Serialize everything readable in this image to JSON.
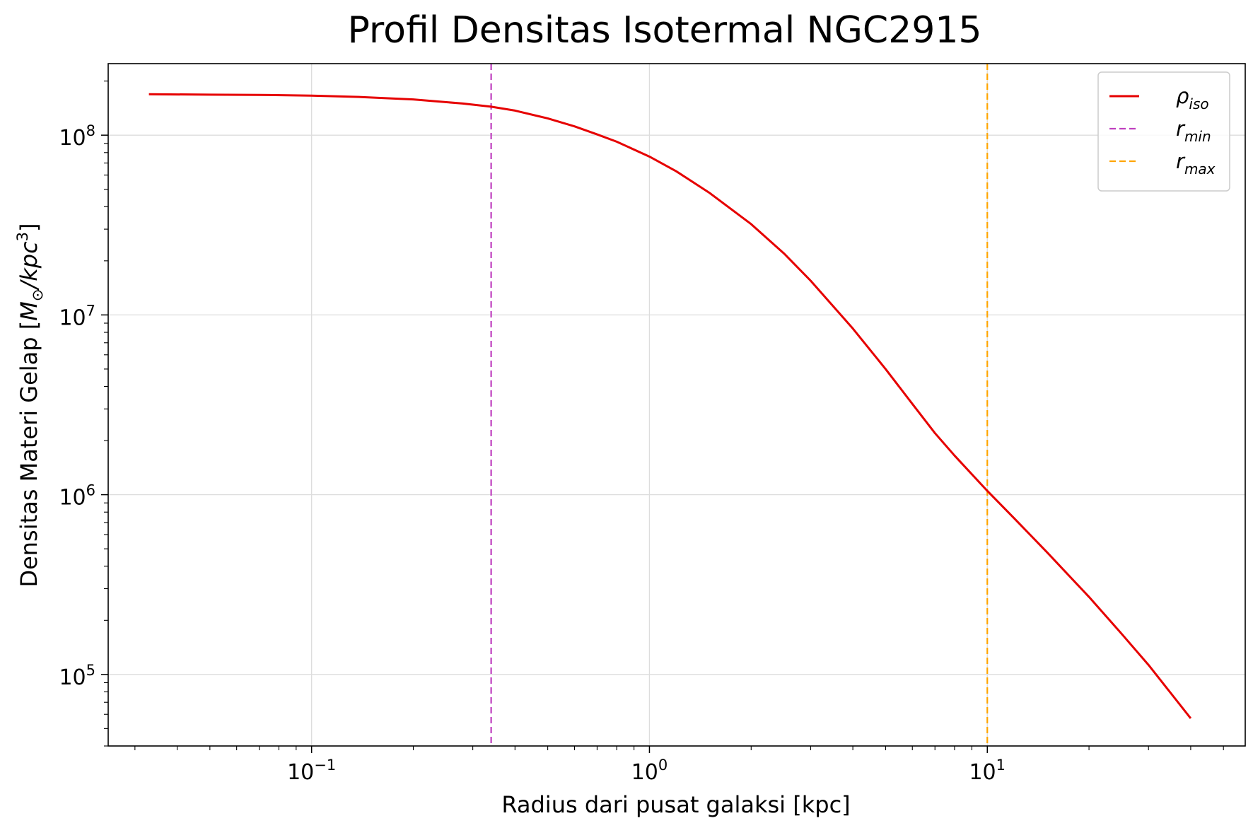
{
  "chart_data": {
    "type": "line",
    "title": "Profil Densitas Isotermal NGC2915",
    "xlabel": "Radius dari pusat galaksi [kpc]",
    "ylabel": {
      "main": "Densitas Materi Gelap [",
      "unit_M": "M",
      "unit_sub": "⊙",
      "unit_rest": "/kpc",
      "unit_exp": "3",
      "close": "]"
    },
    "xscale": "log",
    "yscale": "log",
    "xlim": [
      0.025,
      58
    ],
    "ylim": [
      40000,
      250000000
    ],
    "grid": true,
    "x_ticks": [
      {
        "value": 0.1,
        "base": "10",
        "exp": "−1"
      },
      {
        "value": 1,
        "base": "10",
        "exp": "0"
      },
      {
        "value": 10,
        "base": "10",
        "exp": "1"
      }
    ],
    "y_ticks": [
      {
        "value": 100000,
        "base": "10",
        "exp": "5"
      },
      {
        "value": 1000000,
        "base": "10",
        "exp": "6"
      },
      {
        "value": 10000000,
        "base": "10",
        "exp": "7"
      },
      {
        "value": 100000000,
        "base": "10",
        "exp": "8"
      }
    ],
    "series": [
      {
        "name": {
          "base": "ρ",
          "sub": "iso"
        },
        "color": "#e60000",
        "style": "solid",
        "x": [
          0.033,
          0.05,
          0.07,
          0.1,
          0.14,
          0.2,
          0.28,
          0.34,
          0.4,
          0.5,
          0.6,
          0.7,
          0.8,
          1.0,
          1.2,
          1.5,
          2.0,
          2.5,
          3.0,
          4.0,
          5.0,
          6.0,
          7.0,
          8.0,
          10.0,
          12.0,
          15.0,
          20.0,
          25.0,
          30.0,
          40.0
        ],
        "y": [
          169000000,
          168000000,
          167500000,
          166000000,
          163000000,
          158000000,
          150000000,
          144000000,
          137000000,
          124000000,
          112000000,
          101000000,
          92000000,
          76000000,
          63000000,
          48000000,
          32000000,
          22000000,
          15500000,
          8400000,
          5000000,
          3200000,
          2200000,
          1650000,
          1050000,
          740000,
          480000,
          270000,
          168000,
          113000,
          57000
        ]
      },
      {
        "name": {
          "base": "r",
          "sub": "min"
        },
        "color": "#bf40bf",
        "style": "dashed",
        "vline": 0.34
      },
      {
        "name": {
          "base": "r",
          "sub": "max"
        },
        "color": "#ffa500",
        "style": "dashed",
        "vline": 10.0
      }
    ],
    "legend": "top-right"
  }
}
